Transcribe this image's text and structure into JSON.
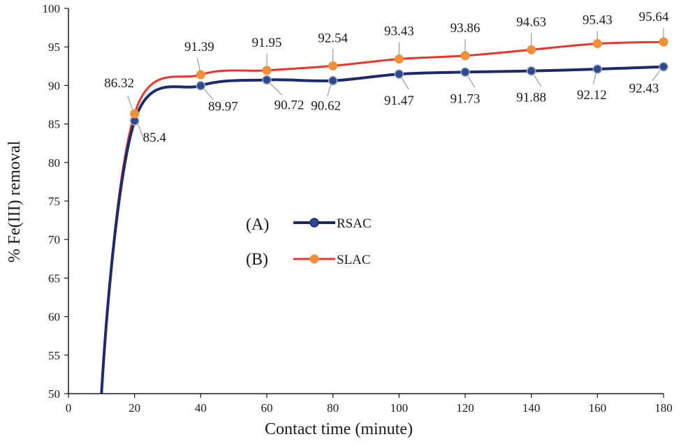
{
  "chart_data": {
    "type": "line",
    "title": "",
    "xlabel": "Contact time (minute)",
    "ylabel": "% Fe(III) removal",
    "xlim": [
      0,
      180
    ],
    "ylim": [
      50,
      100
    ],
    "xticks": [
      0,
      20,
      40,
      60,
      80,
      100,
      120,
      140,
      160,
      180
    ],
    "yticks": [
      50,
      55,
      60,
      65,
      70,
      75,
      80,
      85,
      90,
      95,
      100
    ],
    "grid": false,
    "legend_position": "center-left",
    "series": [
      {
        "name": "RSAC",
        "legend_prefix": "(A)",
        "line_color": "#1f2a6b",
        "marker_color": "#2e4a8f",
        "start": {
          "x": 10,
          "y": 50
        },
        "x": [
          20,
          40,
          60,
          80,
          100,
          120,
          140,
          160,
          180
        ],
        "values": [
          85.4,
          89.97,
          90.72,
          90.62,
          91.47,
          91.73,
          91.88,
          92.12,
          92.43
        ],
        "labels": [
          "85.4",
          "89.97",
          "90.72",
          "90.62",
          "91.47",
          "91.73",
          "91.88",
          "92.12",
          "92.43"
        ]
      },
      {
        "name": "SLAC",
        "legend_prefix": "(B)",
        "line_color": "#e8372a",
        "marker_color": "#f0913a",
        "start": {
          "x": 10,
          "y": 50
        },
        "x": [
          20,
          40,
          60,
          80,
          100,
          120,
          140,
          160,
          180
        ],
        "values": [
          86.32,
          91.39,
          91.95,
          92.54,
          93.43,
          93.86,
          94.63,
          95.43,
          95.64
        ],
        "labels": [
          "86.32",
          "91.39",
          "91.95",
          "92.54",
          "93.43",
          "93.86",
          "94.63",
          "95.43",
          "95.64"
        ]
      }
    ]
  }
}
